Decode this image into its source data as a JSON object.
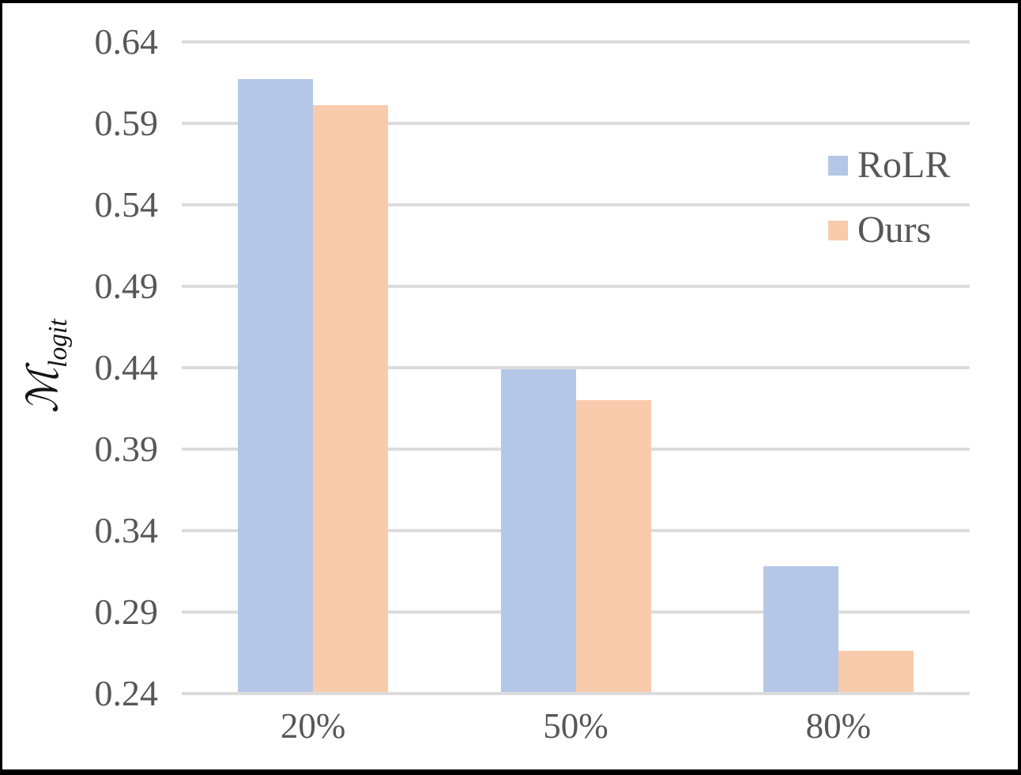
{
  "chart_data": {
    "type": "bar",
    "title": "",
    "xlabel": "",
    "ylabel": "ℳ_logit",
    "ylabel_main": "ℳ",
    "ylabel_sub": "logit",
    "categories": [
      "20%",
      "50%",
      "80%"
    ],
    "series": [
      {
        "name": "RoLR",
        "color": "#b4c7e7",
        "values": [
          0.617,
          0.439,
          0.318
        ]
      },
      {
        "name": "Ours",
        "color": "#f8cbad",
        "values": [
          0.601,
          0.42,
          0.266
        ]
      }
    ],
    "ylim": [
      0.24,
      0.64
    ],
    "y_step": 0.05,
    "y_ticks": [
      "0.24",
      "0.29",
      "0.34",
      "0.39",
      "0.44",
      "0.49",
      "0.54",
      "0.59",
      "0.64"
    ],
    "grid": true,
    "legend_position": "upper-right-inside",
    "colors": {
      "grid": "#dcdcdc",
      "tick_text": "#575757",
      "axis_title_text": "#141414",
      "frame_border": "#000000",
      "background": "#ffffff"
    }
  }
}
